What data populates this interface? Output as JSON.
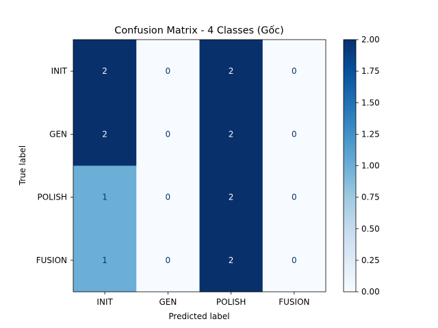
{
  "chart_data": {
    "type": "heatmap",
    "title": "Confusion Matrix - 4 Classes (Gốc)",
    "xlabel": "Predicted label",
    "ylabel": "True label",
    "x_categories": [
      "INIT",
      "GEN",
      "POLISH",
      "FUSION"
    ],
    "y_categories": [
      "INIT",
      "GEN",
      "POLISH",
      "FUSION"
    ],
    "values": [
      [
        2,
        0,
        2,
        0
      ],
      [
        2,
        0,
        2,
        0
      ],
      [
        1,
        0,
        2,
        0
      ],
      [
        1,
        0,
        2,
        0
      ]
    ],
    "colorbar": {
      "range": [
        0,
        2
      ],
      "ticks": [
        "0.00",
        "0.25",
        "0.50",
        "0.75",
        "1.00",
        "1.25",
        "1.50",
        "1.75",
        "2.00"
      ]
    },
    "colormap": "Blues",
    "colors": {
      "min": "#f7fbff",
      "max": "#08306b",
      "text_light": "#f7fbff",
      "text_dark": "#08306b"
    },
    "grid": false
  }
}
